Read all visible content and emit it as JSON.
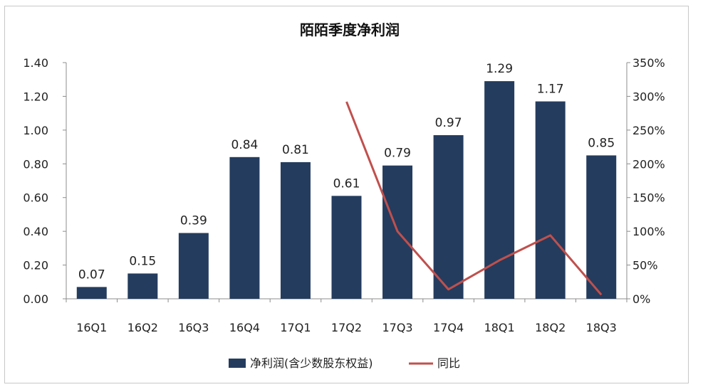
{
  "chart_data": {
    "type": "bar",
    "title": "陌陌季度净利润",
    "categories": [
      "16Q1",
      "16Q2",
      "16Q3",
      "16Q4",
      "17Q1",
      "17Q2",
      "17Q3",
      "17Q4",
      "18Q1",
      "18Q2",
      "18Q3"
    ],
    "series": [
      {
        "name": "净利润(含少数股东权益)",
        "type": "bar",
        "axis": "left",
        "color": "#243c5e",
        "values": [
          0.07,
          0.15,
          0.39,
          0.84,
          0.81,
          0.61,
          0.79,
          0.97,
          1.29,
          1.17,
          0.85
        ],
        "labels": [
          "0.07",
          "0.15",
          "0.39",
          "0.84",
          "0.81",
          "0.61",
          "0.79",
          "0.97",
          "1.29",
          "1.17",
          "0.85"
        ]
      },
      {
        "name": "同比",
        "type": "line",
        "axis": "right",
        "color": "#c0504d",
        "values": [
          null,
          null,
          null,
          null,
          null,
          292,
          100,
          14,
          57,
          94,
          6
        ]
      }
    ],
    "y_left": {
      "range": [
        0,
        1.4
      ],
      "ticks": [
        "0.00",
        "0.20",
        "0.40",
        "0.60",
        "0.80",
        "1.00",
        "1.20",
        "1.40"
      ]
    },
    "y_right": {
      "range": [
        0,
        350
      ],
      "ticks": [
        "0%",
        "50%",
        "100%",
        "150%",
        "200%",
        "250%",
        "300%",
        "350%"
      ]
    },
    "grid": false,
    "legend_position": "bottom"
  }
}
